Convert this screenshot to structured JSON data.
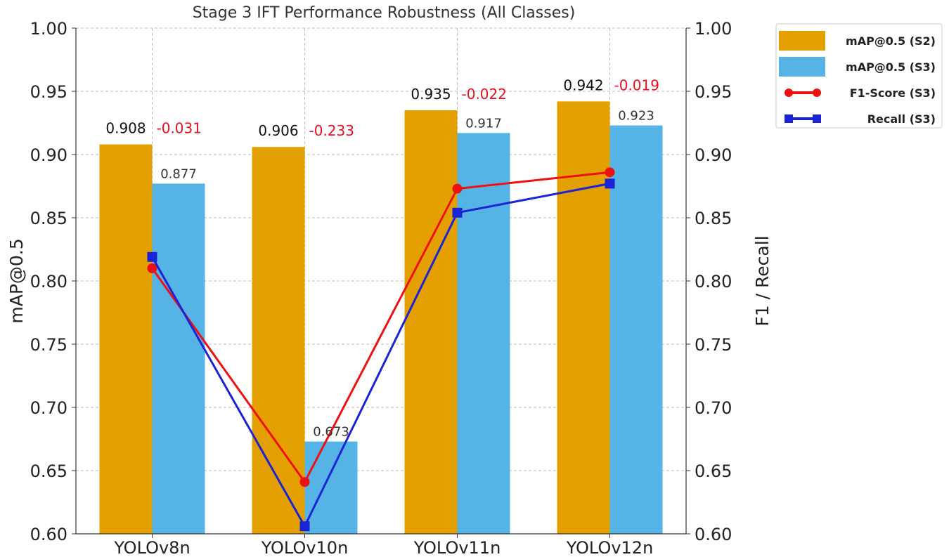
{
  "chart_data": {
    "type": "bar",
    "title": "Stage 3 IFT Performance Robustness (All Classes)",
    "ylabel": "mAP@0.5",
    "y2label": "F1 / Recall",
    "xlabel": "",
    "ylim": [
      0.6,
      1.0
    ],
    "y2lim": [
      0.6,
      1.0
    ],
    "yticks": [
      "0.60",
      "0.65",
      "0.70",
      "0.75",
      "0.80",
      "0.85",
      "0.90",
      "0.95",
      "1.00"
    ],
    "grid": true,
    "legend_position": "outside-top-right",
    "categories": [
      "YOLOv8n",
      "YOLOv10n",
      "YOLOv11n",
      "YOLOv12n"
    ],
    "series": [
      {
        "name": "mAP@0.5 (S2)",
        "kind": "bar",
        "color": "#e3a000",
        "values": [
          0.908,
          0.906,
          0.935,
          0.942
        ],
        "labels": [
          "0.908",
          "0.906",
          "0.935",
          "0.942"
        ]
      },
      {
        "name": "mAP@0.5 (S3)",
        "kind": "bar",
        "color": "#56b3e6",
        "values": [
          0.877,
          0.673,
          0.917,
          0.923
        ],
        "labels": [
          "0.877",
          "0.673",
          "0.917",
          "0.923"
        ]
      },
      {
        "name": "F1-Score (S3)",
        "kind": "line",
        "marker": "circle",
        "color": "#ee1111",
        "values": [
          0.81,
          0.641,
          0.873,
          0.886
        ]
      },
      {
        "name": "Recall (S3)",
        "kind": "line",
        "marker": "square",
        "color": "#1b23d6",
        "values": [
          0.819,
          0.606,
          0.854,
          0.877
        ]
      }
    ],
    "deltas": [
      "-0.031",
      "-0.233",
      "-0.022",
      "-0.019"
    ],
    "delta_color": "#e8101c"
  }
}
